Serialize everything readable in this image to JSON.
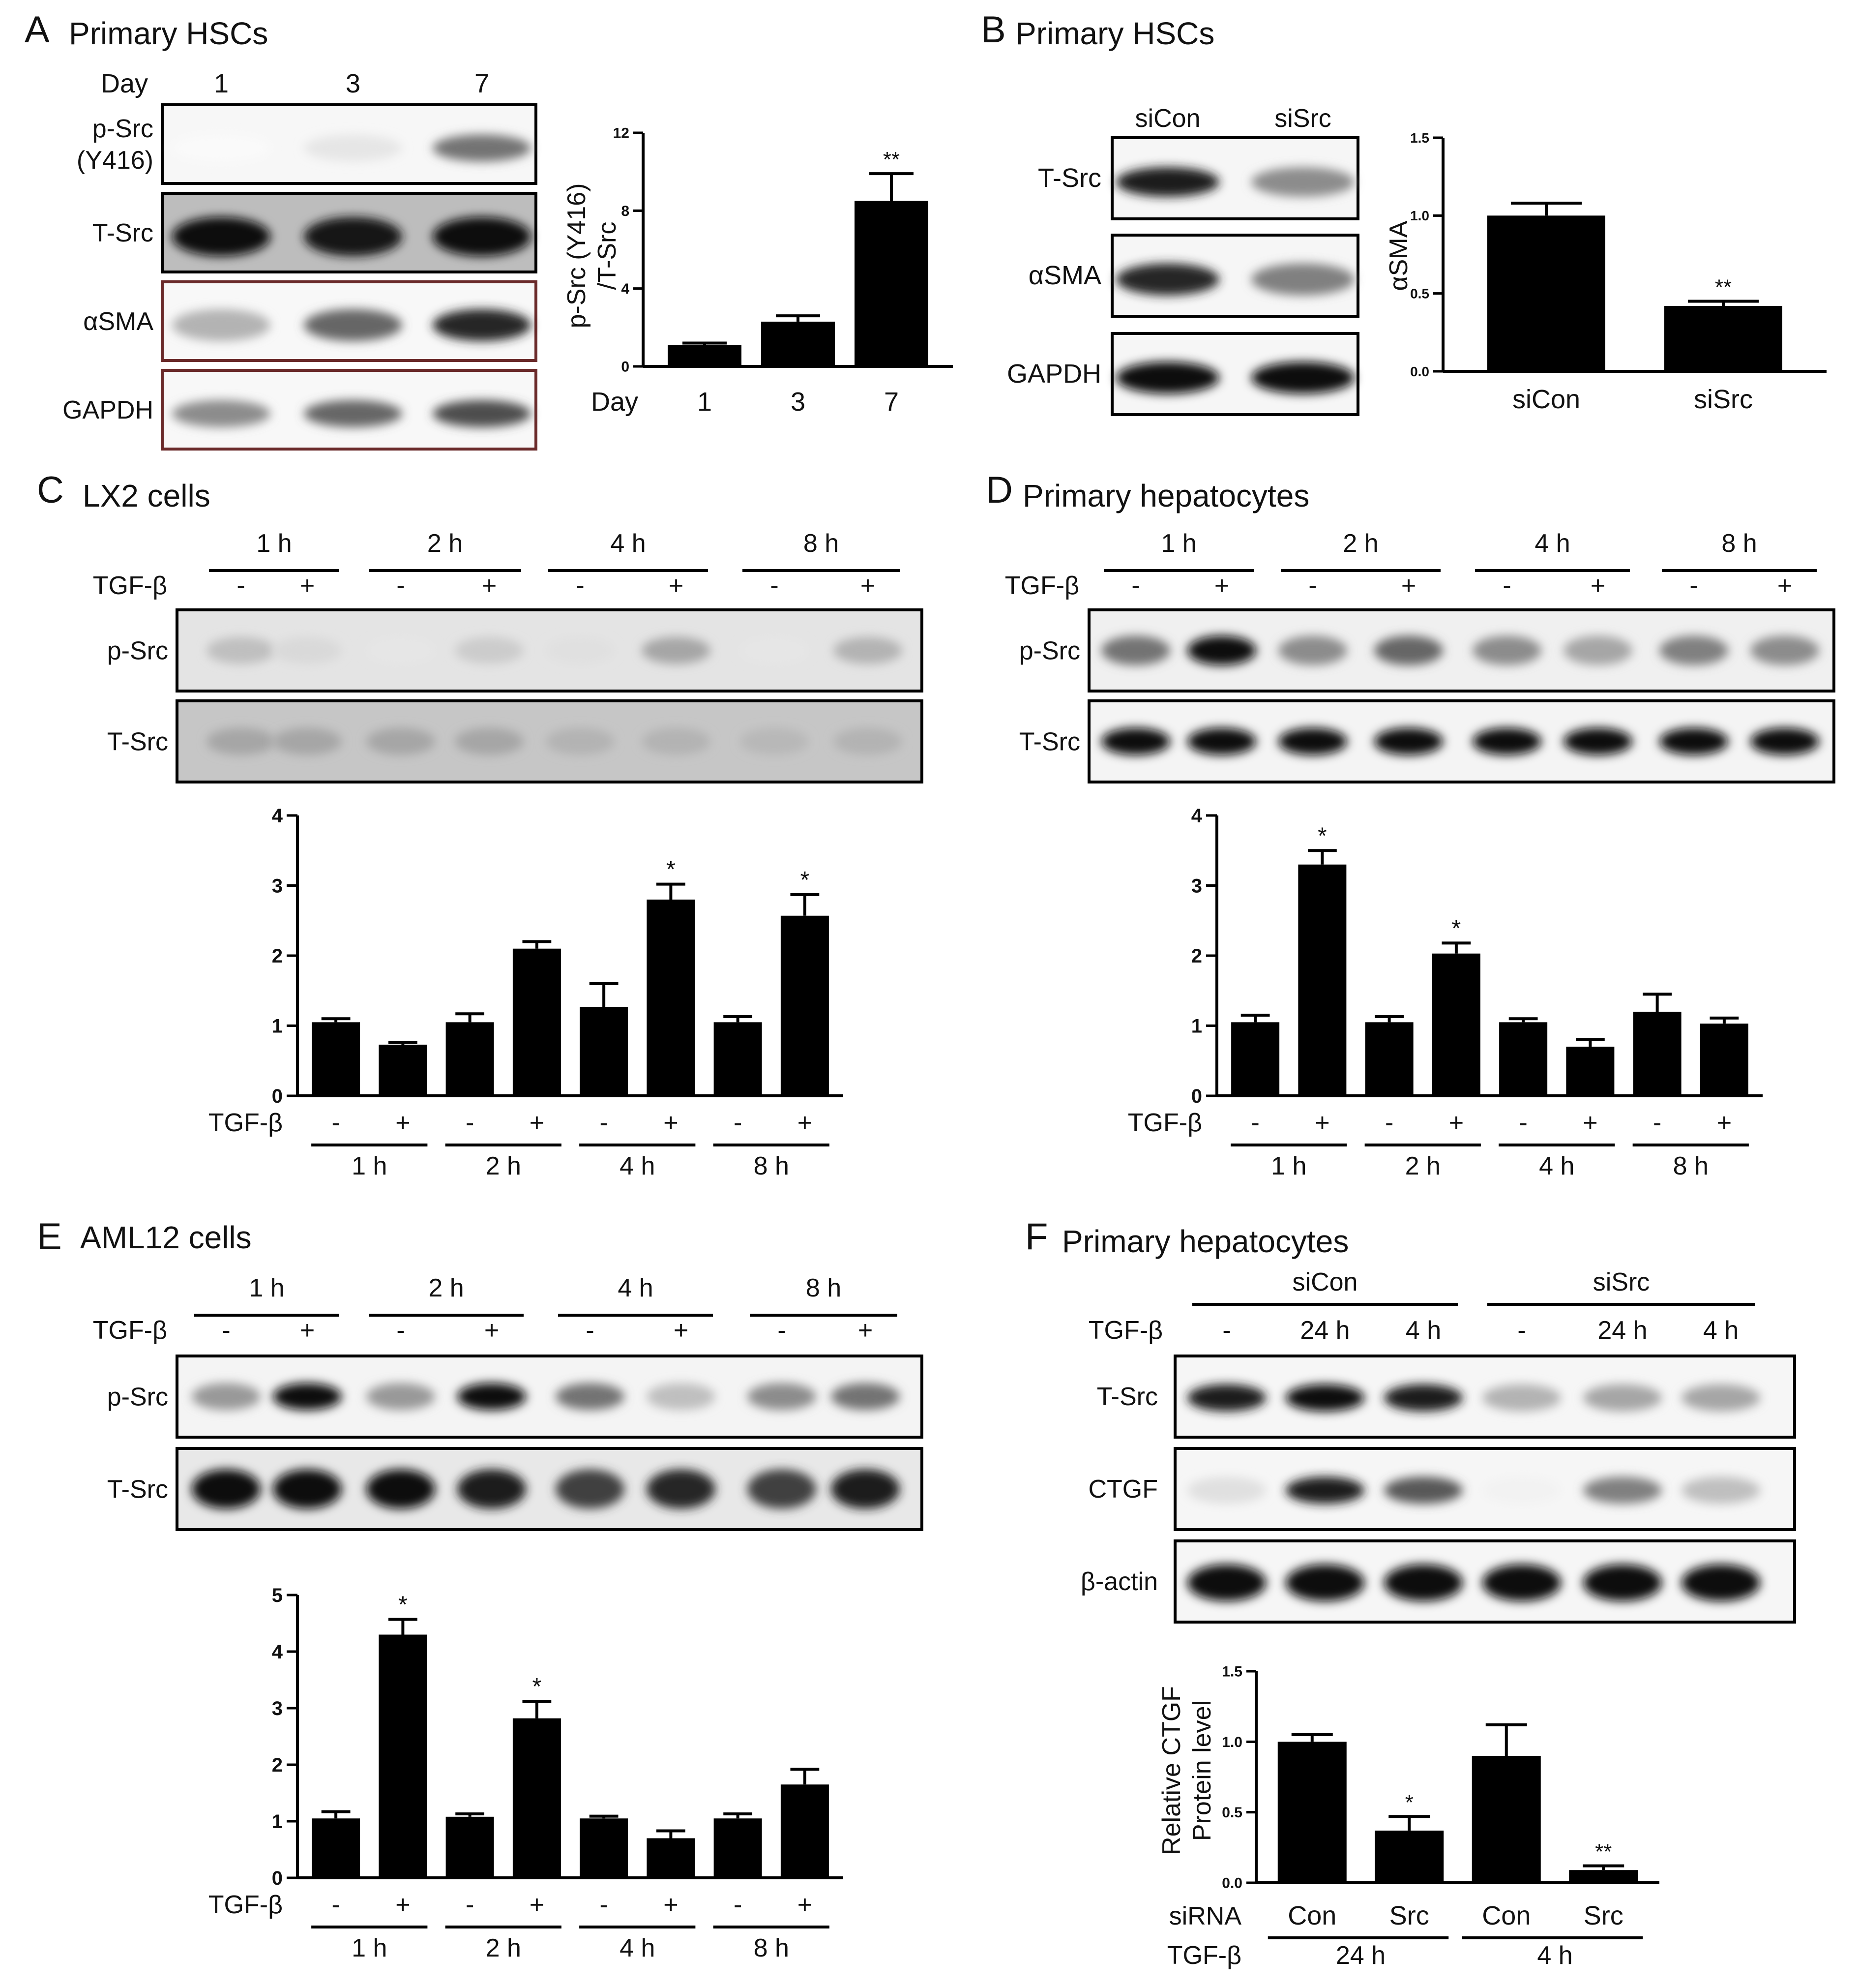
{
  "panels": [
    {
      "letter": "A",
      "title": "Primary HSCs",
      "blot": {
        "header_label": "Day",
        "lanes": [
          {
            "text": "1"
          },
          {
            "text": "3"
          },
          {
            "text": "7"
          }
        ],
        "rows": [
          "p-Src (Y416)",
          "T-Src",
          "αSMA",
          "GAPDH"
        ],
        "row_labels": [
          [
            "p-Src",
            "(Y416)"
          ],
          [
            "T-Src"
          ],
          [
            "αSMA"
          ],
          [
            "GAPDH"
          ]
        ]
      },
      "chart_data": {
        "type": "bar",
        "categories": [
          "1",
          "3",
          "7"
        ],
        "values": [
          1.1,
          2.3,
          8.5
        ],
        "errors": [
          0.1,
          0.3,
          1.4
        ],
        "significance": [
          "",
          "",
          "**"
        ],
        "ylabel": "p-Src (Y416) /T-Src",
        "ylabel_lines": [
          "p-Src (Y416)",
          "/T-Src"
        ],
        "xlabel": "Day",
        "ylim": [
          0,
          12
        ],
        "yticks": [
          "0",
          "4",
          "8",
          "12"
        ]
      }
    },
    {
      "letter": "B",
      "title": "Primary HSCs",
      "blot": {
        "lanes": [
          {
            "text": "siCon"
          },
          {
            "text": "siSrc"
          }
        ],
        "rows": [
          "T-Src",
          "αSMA",
          "GAPDH"
        ],
        "row_labels": [
          [
            "T-Src"
          ],
          [
            "αSMA"
          ],
          [
            "GAPDH"
          ]
        ]
      },
      "chart_data": {
        "type": "bar",
        "categories": [
          "siCon",
          "siSrc"
        ],
        "values": [
          1.0,
          0.42
        ],
        "errors": [
          0.08,
          0.03
        ],
        "significance": [
          "",
          "**"
        ],
        "ylabel": "αSMA",
        "ylim": [
          0,
          1.5
        ],
        "yticks": [
          "0.0",
          "0.5",
          "1.0",
          "1.5"
        ]
      }
    },
    {
      "letter": "C",
      "title": "LX2 cells",
      "blot": {
        "groups": [
          "1 h",
          "2 h",
          "4 h",
          "8 h"
        ],
        "treatment_label": "TGF-β",
        "treatment": [
          "-",
          "+",
          "-",
          "+",
          "-",
          "+",
          "-",
          "+"
        ],
        "rows": [
          "p-Src",
          "T-Src"
        ]
      },
      "chart_data": {
        "type": "bar",
        "categories": [
          "1 h -",
          "1 h +",
          "2 h -",
          "2 h +",
          "4 h -",
          "4 h +",
          "8 h -",
          "8 h +"
        ],
        "values": [
          1.05,
          0.73,
          1.05,
          2.1,
          1.27,
          2.8,
          1.05,
          2.57
        ],
        "errors": [
          0.05,
          0.03,
          0.12,
          0.1,
          0.33,
          0.22,
          0.08,
          0.3
        ],
        "significance": [
          "",
          "",
          "",
          "",
          "",
          "*",
          "",
          "*"
        ],
        "ylim": [
          0,
          4
        ],
        "yticks": [
          "0",
          "1",
          "2",
          "3",
          "4"
        ],
        "treatment_label": "TGF-β",
        "treatment": [
          "-",
          "+",
          "-",
          "+",
          "-",
          "+",
          "-",
          "+"
        ],
        "groups": [
          "1 h",
          "2 h",
          "4 h",
          "8 h"
        ]
      }
    },
    {
      "letter": "D",
      "title": "Primary hepatocytes",
      "blot": {
        "groups": [
          "1 h",
          "2 h",
          "4 h",
          "8 h"
        ],
        "treatment_label": "TGF-β",
        "treatment": [
          "-",
          "+",
          "-",
          "+",
          "-",
          "+",
          "-",
          "+"
        ],
        "rows": [
          "p-Src",
          "T-Src"
        ]
      },
      "chart_data": {
        "type": "bar",
        "categories": [
          "1 h -",
          "1 h +",
          "2 h -",
          "2 h +",
          "4 h -",
          "4 h +",
          "8 h -",
          "8 h +"
        ],
        "values": [
          1.05,
          3.3,
          1.05,
          2.03,
          1.05,
          0.7,
          1.2,
          1.03
        ],
        "errors": [
          0.1,
          0.2,
          0.08,
          0.15,
          0.05,
          0.1,
          0.25,
          0.08
        ],
        "significance": [
          "",
          "*",
          "",
          "*",
          "",
          "",
          "",
          ""
        ],
        "ylim": [
          0,
          4
        ],
        "yticks": [
          "0",
          "1",
          "2",
          "3",
          "4"
        ],
        "treatment_label": "TGF-β",
        "treatment": [
          "-",
          "+",
          "-",
          "+",
          "-",
          "+",
          "-",
          "+"
        ],
        "groups": [
          "1 h",
          "2 h",
          "4 h",
          "8 h"
        ]
      }
    },
    {
      "letter": "E",
      "title": "AML12 cells",
      "blot": {
        "groups": [
          "1 h",
          "2 h",
          "4 h",
          "8 h"
        ],
        "treatment_label": "TGF-β",
        "treatment": [
          "-",
          "+",
          "-",
          "+",
          "-",
          "+",
          "-",
          "+"
        ],
        "rows": [
          "p-Src",
          "T-Src"
        ]
      },
      "chart_data": {
        "type": "bar",
        "categories": [
          "1 h -",
          "1 h +",
          "2 h -",
          "2 h +",
          "4 h -",
          "4 h +",
          "8 h -",
          "8 h +"
        ],
        "values": [
          1.05,
          4.3,
          1.08,
          2.82,
          1.05,
          0.7,
          1.05,
          1.65
        ],
        "errors": [
          0.12,
          0.27,
          0.05,
          0.3,
          0.04,
          0.13,
          0.08,
          0.27
        ],
        "significance": [
          "",
          "*",
          "",
          "*",
          "",
          "",
          "",
          ""
        ],
        "ylim": [
          0,
          5
        ],
        "yticks": [
          "0",
          "1",
          "2",
          "3",
          "4",
          "5"
        ],
        "treatment_label": "TGF-β",
        "treatment": [
          "-",
          "+",
          "-",
          "+",
          "-",
          "+",
          "-",
          "+"
        ],
        "groups": [
          "1 h",
          "2 h",
          "4 h",
          "8 h"
        ]
      }
    },
    {
      "letter": "F",
      "title": "Primary hepatocytes",
      "blot": {
        "groups": [
          "siCon",
          "siSrc"
        ],
        "treatment_label": "TGF-β",
        "treatment": [
          "-",
          "24 h",
          "4 h",
          "-",
          "24 h",
          "4 h"
        ],
        "rows": [
          "T-Src",
          "CTGF",
          "β-actin"
        ]
      },
      "chart_data": {
        "type": "bar",
        "categories": [
          "Con 24 h",
          "Src 24 h",
          "Con 4 h",
          "Src 4 h"
        ],
        "values": [
          1.0,
          0.37,
          0.9,
          0.09
        ],
        "errors": [
          0.05,
          0.1,
          0.22,
          0.03
        ],
        "significance": [
          "",
          "*",
          "",
          "**"
        ],
        "ylabel": "Relative CTGF Protein level",
        "ylabel_lines": [
          "Relative CTGF",
          "Protein level"
        ],
        "ylim": [
          0,
          1.5
        ],
        "yticks": [
          "0.0",
          "0.5",
          "1.0",
          "1.5"
        ],
        "row1_label": "siRNA",
        "row1": [
          "Con",
          "Src",
          "Con",
          "Src"
        ],
        "row2_label": "TGF-β",
        "row2": [
          "24 h",
          "4 h"
        ]
      }
    }
  ]
}
